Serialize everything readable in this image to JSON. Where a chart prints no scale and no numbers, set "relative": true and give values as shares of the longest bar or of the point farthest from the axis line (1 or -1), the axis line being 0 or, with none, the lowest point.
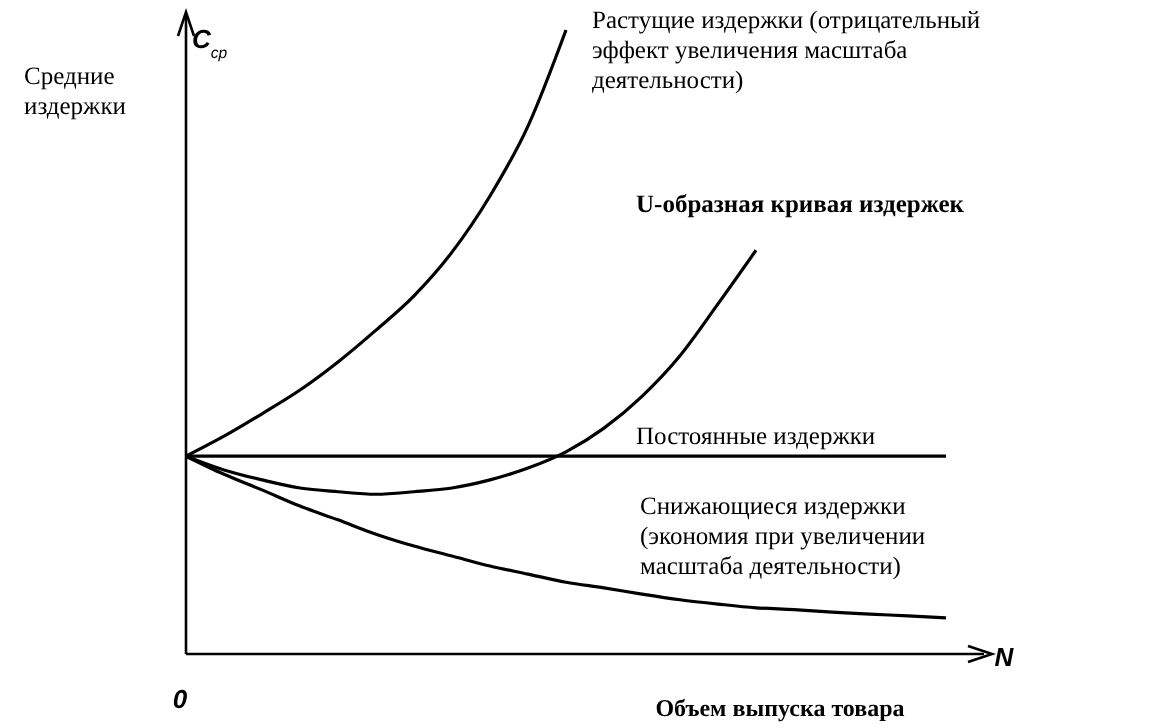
{
  "chart_data": {
    "type": "line",
    "relative": true,
    "ylabel": "Средние издержки",
    "xlabel": "Объем выпуска товара",
    "annotations": [
      "C$_{ср}$",
      "N",
      "0"
    ],
    "categories": [
      null,
      null,
      null,
      null,
      null,
      null,
      null,
      null,
      null,
      null,
      null,
      null,
      null,
      null,
      null,
      null,
      null,
      null,
      null,
      null,
      null
    ],
    "series": [
      {
        "name": "Растущие издержки (отрицательный эффект увеличения масштаба деятельности)",
        "color": "#000000",
        "values": [
          0.317,
          0.349,
          0.385,
          0.423,
          0.468,
          0.519,
          0.574,
          0.644,
          0.734,
          0.846,
          1,
          null,
          null,
          null,
          null,
          null,
          null,
          null,
          null,
          null,
          null
        ]
      },
      {
        "name": "U-образная кривая издержек",
        "color": "#000000",
        "values": [
          0.317,
          0.295,
          0.279,
          0.266,
          0.26,
          0.256,
          0.26,
          0.266,
          0.279,
          0.298,
          0.324,
          0.362,
          0.413,
          0.478,
          0.561,
          0.647,
          null,
          null,
          null,
          null,
          null
        ]
      },
      {
        "name": "Постоянные издержки",
        "color": "#000000",
        "values": [
          0.317,
          0.317,
          0.317,
          0.317,
          0.317,
          0.317,
          0.317,
          0.317,
          0.317,
          0.317,
          0.317,
          0.317,
          0.317,
          0.317,
          0.317,
          0.317,
          0.317,
          0.317,
          0.317,
          0.317,
          0.317
        ]
      },
      {
        "name": "Снижающиеся издержки (экономия при увеличении масштаба деятельности)",
        "color": "#000000",
        "values": [
          0.317,
          0.288,
          0.263,
          0.237,
          0.215,
          0.192,
          0.173,
          0.157,
          0.141,
          0.128,
          0.115,
          0.106,
          0.096,
          0.087,
          0.08,
          0.074,
          0.071,
          0.067,
          0.064,
          0.061,
          0.058
        ]
      }
    ]
  }
}
